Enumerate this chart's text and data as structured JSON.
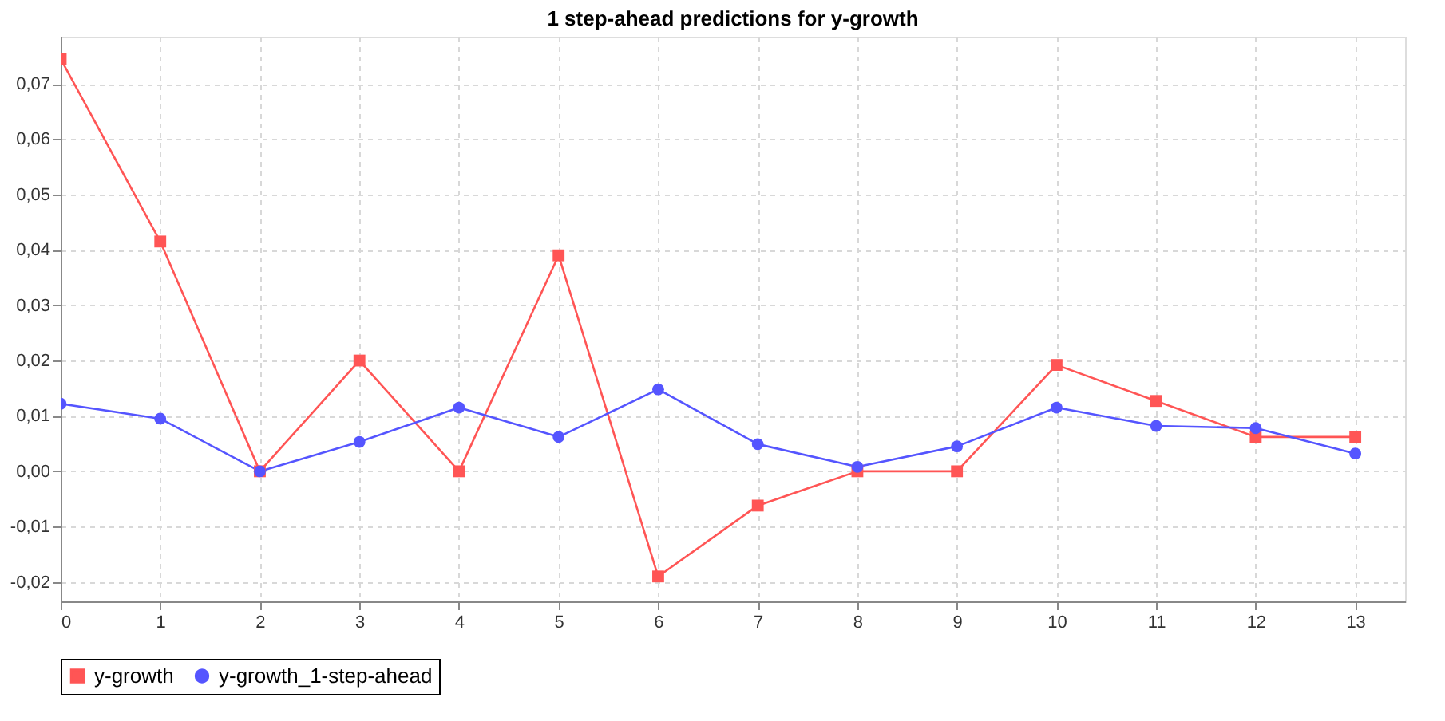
{
  "chart_data": {
    "type": "line",
    "title": "1 step-ahead predictions for y-growth",
    "x": [
      0,
      1,
      2,
      3,
      4,
      5,
      6,
      7,
      8,
      9,
      10,
      11,
      12,
      13
    ],
    "series": [
      {
        "name": "y-growth",
        "color": "#ff5555",
        "marker": "square",
        "values": [
          0.0745,
          0.0415,
          0.0,
          0.02,
          0.0,
          0.039,
          -0.019,
          -0.0062,
          0.0,
          0.0,
          0.0192,
          0.0127,
          0.0062,
          0.0062
        ]
      },
      {
        "name": "y-growth_1-step-ahead",
        "color": "#5555ff",
        "marker": "circle",
        "values": [
          0.0122,
          0.0095,
          0.0,
          0.0053,
          0.0115,
          0.0062,
          0.0148,
          0.0049,
          0.0008,
          0.0045,
          0.0115,
          0.0082,
          0.0078,
          0.0032
        ]
      }
    ],
    "xlim": [
      0,
      13.5
    ],
    "xticks": [
      0,
      1,
      2,
      3,
      4,
      5,
      6,
      7,
      8,
      9,
      10,
      11,
      12,
      13
    ],
    "ylim": [
      -0.0235,
      0.0785
    ],
    "yticks": [
      {
        "value": -0.02,
        "label": "-0,02"
      },
      {
        "value": -0.01,
        "label": "-0,01"
      },
      {
        "value": 0.0,
        "label": "0,00"
      },
      {
        "value": 0.01,
        "label": "0,01"
      },
      {
        "value": 0.02,
        "label": "0,02"
      },
      {
        "value": 0.03,
        "label": "0,03"
      },
      {
        "value": 0.04,
        "label": "0,04"
      },
      {
        "value": 0.05,
        "label": "0,05"
      },
      {
        "value": 0.06,
        "label": "0,06"
      },
      {
        "value": 0.07,
        "label": "0,07"
      }
    ],
    "grid": true,
    "legend": "bottom",
    "line_style": "solid"
  }
}
